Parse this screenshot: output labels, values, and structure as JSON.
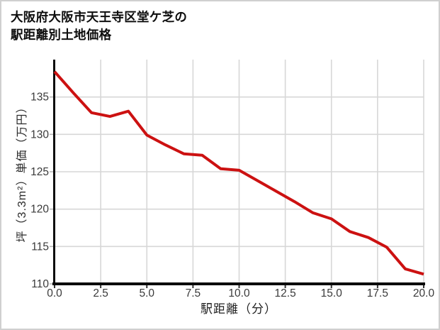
{
  "page": {
    "background_color": "#ffffff",
    "border_color": "#d0d0d0"
  },
  "header": {
    "title_line1": "大阪府大阪市天王寺区堂ケ芝の",
    "title_line2": "駅距離別土地価格"
  },
  "chart_data": {
    "type": "line",
    "title": "大阪府大阪市天王寺区堂ケ芝の駅距離別土地価格",
    "xlabel": "駅距離（分）",
    "ylabel": "坪（3.3m²）単価（万円）",
    "x": [
      0,
      1,
      2,
      3,
      4,
      5,
      6,
      7,
      8,
      9,
      10,
      11,
      12,
      13,
      14,
      15,
      16,
      17,
      18,
      19,
      20
    ],
    "values": [
      138.4,
      135.6,
      132.9,
      132.4,
      133.1,
      129.9,
      128.6,
      127.4,
      127.2,
      125.4,
      125.2,
      123.8,
      122.4,
      121.0,
      119.5,
      118.7,
      117.0,
      116.2,
      114.9,
      112.0,
      111.3
    ],
    "xlim": [
      0,
      20
    ],
    "ylim": [
      110,
      140
    ],
    "x_ticks": [
      0,
      2.5,
      5,
      7.5,
      10,
      12.5,
      15,
      17.5,
      20
    ],
    "x_tick_labels": [
      "0.0",
      "2.5",
      "5.0",
      "7.5",
      "10.0",
      "12.5",
      "15.0",
      "17.5",
      "20.0"
    ],
    "y_ticks": [
      110,
      115,
      120,
      125,
      130,
      135
    ],
    "y_tick_labels": [
      "110",
      "115",
      "120",
      "125",
      "130",
      "135"
    ],
    "grid": true,
    "legend": "none",
    "line_color": "#cc1111",
    "axis_color": "#0a0a0a",
    "grid_color": "#d7d7d7",
    "tick_text_color": "#3a3a3a",
    "y_tick_mark_color": "#b5b5b5",
    "x_tick_mark_color": "#333333"
  }
}
